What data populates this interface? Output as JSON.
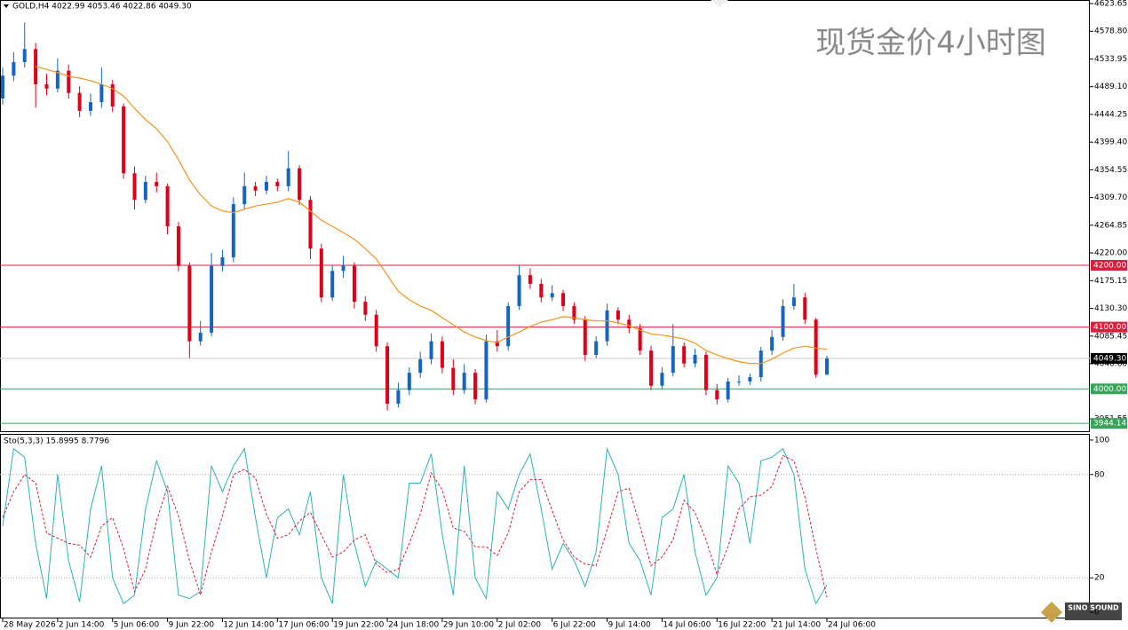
{
  "chart_data": [
    {
      "type": "candlestick",
      "header": "GOLD,H4 4022.99 4053.46 4022.86 4049.30",
      "title": "现货金价4小时图",
      "logo": "SINO SOUND",
      "up_color": "#1565c0",
      "down_color": "#e0001a",
      "categories": [
        "28 May 2026",
        null,
        null,
        null,
        null,
        "2 Jun 14:00",
        null,
        null,
        null,
        null,
        "5 Jun 06:00",
        null,
        null,
        null,
        null,
        "9 Jun 22:00",
        null,
        null,
        null,
        null,
        "12 Jun 14:00",
        null,
        null,
        null,
        null,
        "17 Jun 06:00",
        null,
        null,
        null,
        null,
        "19 Jun 22:00",
        null,
        null,
        null,
        null,
        "24 Jun 18:00",
        null,
        null,
        null,
        null,
        "29 Jun 10:00",
        null,
        null,
        null,
        null,
        "2 Jul 02:00",
        null,
        null,
        null,
        null,
        "6 Jul 22:00",
        null,
        null,
        null,
        null,
        "9 Jul 14:00",
        null,
        null,
        null,
        null,
        "14 Jul 06:00",
        null,
        null,
        null,
        null,
        "16 Jul 22:00",
        null,
        null,
        null,
        null,
        "21 Jul 14:00",
        null,
        null,
        null,
        null,
        "24 Jul 06:00"
      ],
      "open": [
        4470,
        4507,
        4529,
        4550,
        4493,
        4486,
        4515,
        4479,
        4450,
        4464,
        4493,
        4457,
        4349,
        4306,
        4335,
        4328,
        4263,
        4199,
        4077,
        4091,
        4199,
        4213,
        4299,
        4328,
        4321,
        4335,
        4328,
        4357,
        4306,
        4227,
        4148,
        4191,
        4199,
        4141,
        4120,
        4069,
        3976,
        3998,
        4026,
        4048,
        4077,
        4034,
        3998,
        4026,
        3983,
        4077,
        4069,
        4134,
        4184,
        4170,
        4148,
        4155,
        4134,
        4112,
        4055,
        4077,
        4127,
        4112,
        4098,
        4062,
        4005,
        4026,
        4069,
        4041,
        4055,
        3998,
        3983,
        4012,
        4012,
        4019,
        4062,
        4084,
        4134,
        4148,
        4112,
        4022.99
      ],
      "high": [
        4520,
        4545,
        4593,
        4560,
        4510,
        4535,
        4525,
        4490,
        4478,
        4520,
        4500,
        4462,
        4360,
        4345,
        4350,
        4332,
        4270,
        4205,
        4110,
        4220,
        4225,
        4310,
        4350,
        4335,
        4345,
        4340,
        4385,
        4362,
        4312,
        4235,
        4200,
        4215,
        4205,
        4150,
        4128,
        4075,
        4010,
        4035,
        4060,
        4090,
        4085,
        4048,
        4040,
        4032,
        4088,
        4095,
        4140,
        4200,
        4195,
        4178,
        4168,
        4160,
        4140,
        4118,
        4085,
        4138,
        4132,
        4120,
        4105,
        4070,
        4035,
        4105,
        4075,
        4065,
        4060,
        4008,
        4018,
        4022,
        4025,
        4068,
        4095,
        4145,
        4170,
        4155,
        4115,
        4053.46
      ],
      "low": [
        4460,
        4498,
        4520,
        4455,
        4475,
        4480,
        4470,
        4440,
        4442,
        4455,
        4448,
        4340,
        4290,
        4300,
        4318,
        4250,
        4190,
        4050,
        4070,
        4085,
        4190,
        4205,
        4290,
        4312,
        4315,
        4320,
        4320,
        4298,
        4210,
        4140,
        4142,
        4180,
        4130,
        4110,
        4060,
        3965,
        3970,
        3990,
        4018,
        4040,
        4025,
        3990,
        3992,
        3975,
        3978,
        4060,
        4062,
        4128,
        4162,
        4140,
        4142,
        4126,
        4105,
        4045,
        4050,
        4070,
        4105,
        4090,
        4055,
        3998,
        4000,
        4020,
        4035,
        4035,
        3990,
        3975,
        3978,
        4005,
        4006,
        4012,
        4055,
        4078,
        4128,
        4105,
        4018,
        4022.86
      ],
      "close": [
        4507,
        4529,
        4550,
        4493,
        4486,
        4515,
        4479,
        4450,
        4464,
        4493,
        4457,
        4349,
        4306,
        4335,
        4328,
        4263,
        4199,
        4077,
        4091,
        4199,
        4213,
        4299,
        4328,
        4321,
        4335,
        4328,
        4357,
        4306,
        4227,
        4148,
        4191,
        4199,
        4141,
        4120,
        4069,
        3976,
        3998,
        4026,
        4048,
        4077,
        4034,
        3998,
        4026,
        3983,
        4077,
        4069,
        4134,
        4184,
        4170,
        4148,
        4155,
        4134,
        4112,
        4055,
        4077,
        4127,
        4112,
        4098,
        4062,
        4005,
        4026,
        4069,
        4041,
        4055,
        3998,
        3983,
        4012,
        4012,
        4019,
        4062,
        4084,
        4134,
        4148,
        4112,
        4023,
        4049.3
      ],
      "ma": {
        "color": "#f7931e",
        "values": [
          null,
          null,
          null,
          4522,
          4517,
          4512,
          4506,
          4503,
          4499,
          4493,
          4486,
          4474,
          4454,
          4436,
          4421,
          4400,
          4371,
          4338,
          4314,
          4296,
          4288,
          4285,
          4291,
          4296,
          4299,
          4302,
          4308,
          4302,
          4288,
          4273,
          4263,
          4253,
          4242,
          4227,
          4210,
          4184,
          4158,
          4144,
          4134,
          4127,
          4115,
          4104,
          4092,
          4084,
          4078,
          4075,
          4084,
          4092,
          4101,
          4108,
          4112,
          4117,
          4115,
          4112,
          4110,
          4110,
          4107,
          4102,
          4095,
          4089,
          4087,
          4084,
          4081,
          4074,
          4062,
          4055,
          4049,
          4044,
          4041,
          4041,
          4048,
          4058,
          4066,
          4069,
          4066,
          4064
        ]
      },
      "ylim": [
        3930,
        4629.4
      ],
      "yticks": [
        4623.65,
        {
          "value": 4578.8,
          "label": "4578.80"
        },
        4533.95,
        {
          "value": 4489.1,
          "label": "4489.10"
        },
        4444.25,
        {
          "value": 4399.4,
          "label": "4399.40"
        },
        4354.55,
        {
          "value": 4309.7,
          "label": "4309.70"
        },
        4264.85,
        {
          "value": 4220,
          "label": "4220.00"
        },
        4175.15,
        {
          "value": 4130.3,
          "label": "4130.30"
        },
        4085.45,
        {
          "value": 4040.6,
          "label": "4040.60"
        },
        3951.55
      ],
      "levels": [
        {
          "value": 4200,
          "label": "4200.00",
          "color": "#d6213d"
        },
        {
          "value": 4100,
          "label": "4100.00",
          "color": "#d6213d"
        },
        {
          "value": 4000,
          "label": "4000.00",
          "color": "#3aa35b"
        },
        {
          "value": 3944.14,
          "label": "3944.14",
          "color": "#3aa35b"
        }
      ],
      "last_price": {
        "value": 4049.3,
        "label": "4049.30",
        "color": "#000000"
      }
    },
    {
      "type": "line",
      "label": "Sto(5,3,3) 15.8995 8.7796",
      "series": [
        {
          "color": "#2bb3b8",
          "style": "solid",
          "values": [
            50,
            95,
            90,
            40,
            8,
            80,
            30,
            6,
            60,
            85,
            20,
            5,
            10,
            60,
            88,
            70,
            10,
            8,
            12,
            85,
            70,
            85,
            95,
            55,
            20,
            55,
            60,
            45,
            70,
            20,
            5,
            80,
            40,
            15,
            30,
            25,
            20,
            75,
            75,
            92,
            45,
            10,
            85,
            20,
            8,
            70,
            60,
            80,
            92,
            60,
            25,
            40,
            30,
            15,
            35,
            95,
            80,
            40,
            30,
            10,
            55,
            60,
            80,
            35,
            10,
            20,
            85,
            75,
            40,
            88,
            90,
            95,
            80,
            25,
            5,
            15.8995
          ]
        },
        {
          "color": "#d6213d",
          "style": "dashed",
          "values": [
            55,
            70,
            80,
            75,
            46,
            43,
            40,
            39,
            32,
            50,
            55,
            37,
            12,
            25,
            53,
            73,
            56,
            30,
            10,
            35,
            56,
            80,
            83,
            78,
            57,
            43,
            45,
            53,
            58,
            45,
            32,
            35,
            42,
            45,
            28,
            23,
            25,
            40,
            57,
            81,
            71,
            49,
            47,
            38,
            38,
            33,
            46,
            70,
            77,
            77,
            59,
            42,
            32,
            28,
            27,
            48,
            70,
            72,
            50,
            27,
            32,
            42,
            65,
            58,
            42,
            22,
            38,
            60,
            67,
            68,
            73,
            91,
            88,
            67,
            37,
            8.7796
          ]
        }
      ],
      "ylim": [
        -3.6,
        104.1
      ],
      "yticks": [
        100,
        80,
        20,
        0
      ],
      "grid": true
    }
  ]
}
